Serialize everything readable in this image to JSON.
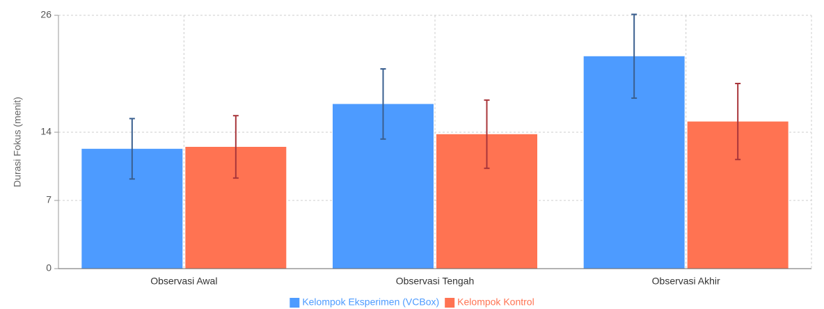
{
  "chart_data": {
    "type": "bar",
    "ylabel": "Durasi Fokus (menit)",
    "ylim": [
      0,
      26
    ],
    "yticks": [
      0,
      7,
      14,
      26
    ],
    "grid": true,
    "legend_position": "bottom-center",
    "categories": [
      "Observasi Awal",
      "Observasi Tengah",
      "Observasi Akhir"
    ],
    "series": [
      {
        "name": "Kelompok Eksperimen (VCBox)",
        "color": "#4d9bff",
        "error_color": "#3a5f8f",
        "values": [
          12.3,
          16.9,
          21.8
        ],
        "errors": [
          3.1,
          3.6,
          4.3
        ]
      },
      {
        "name": "Kelompok Kontrol",
        "color": "#ff7352",
        "error_color": "#a8353a",
        "values": [
          12.5,
          13.8,
          15.1
        ],
        "errors": [
          3.2,
          3.5,
          3.9
        ]
      }
    ]
  }
}
